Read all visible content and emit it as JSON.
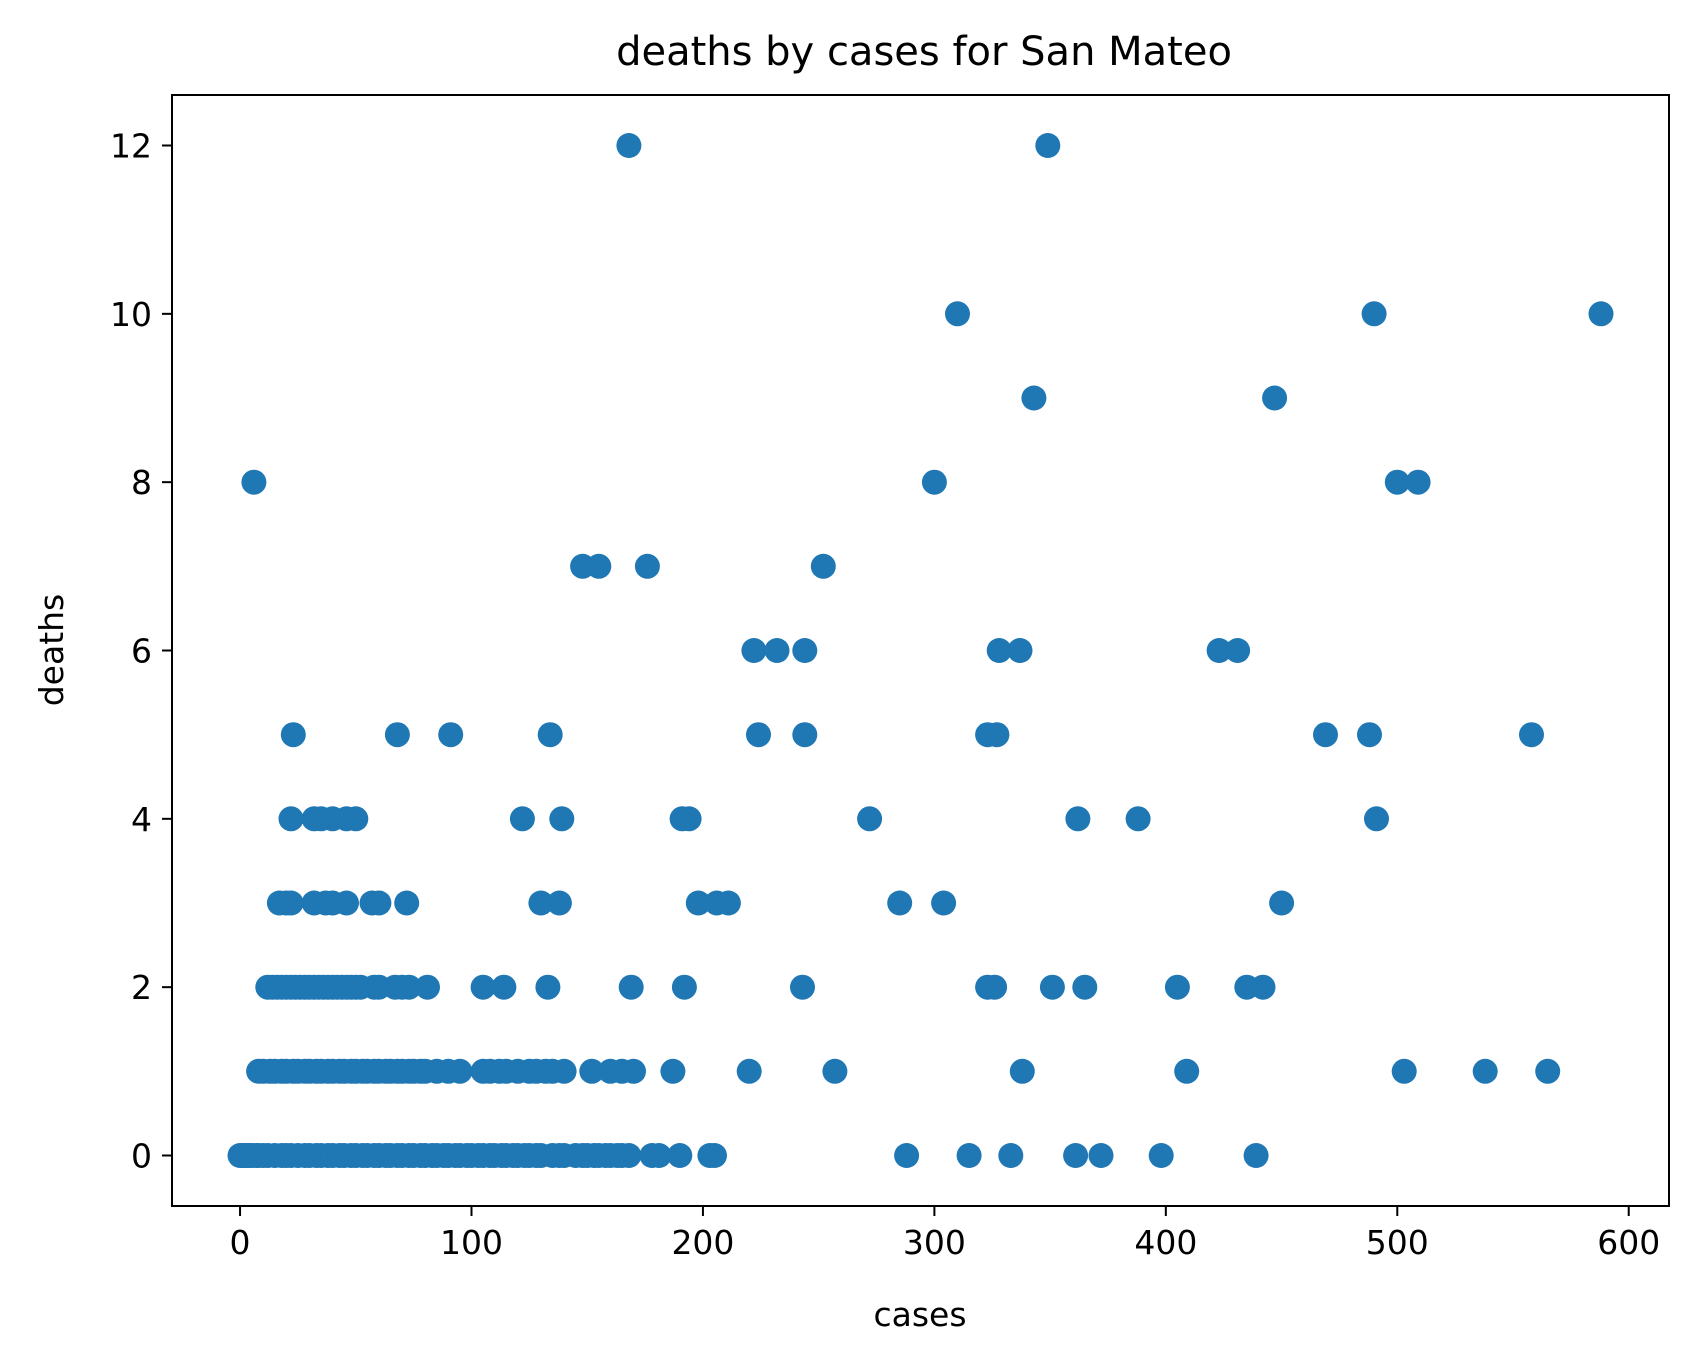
{
  "chart_data": {
    "type": "scatter",
    "title": "deaths by cases for San Mateo",
    "xlabel": "cases",
    "ylabel": "deaths",
    "xlim": [
      -29.4,
      617.4
    ],
    "ylim": [
      -0.6,
      12.6
    ],
    "xticks": [
      0,
      100,
      200,
      300,
      400,
      500,
      600
    ],
    "yticks": [
      0,
      2,
      4,
      6,
      8,
      10,
      12
    ],
    "grid": false,
    "color": "#1f77b4",
    "series": [
      {
        "x": [
          0,
          1,
          2,
          3,
          4,
          5,
          7,
          8,
          10,
          12,
          15,
          18,
          20,
          22,
          25,
          28,
          30,
          33,
          35,
          38,
          40,
          43,
          45,
          48,
          50,
          53,
          55,
          58,
          60,
          63,
          65,
          68,
          70,
          73,
          75,
          78,
          80,
          83,
          85,
          88,
          90,
          93,
          95,
          98,
          100,
          103,
          105,
          108,
          110,
          113,
          115,
          118,
          120,
          123,
          125,
          128,
          130,
          135,
          138,
          140,
          145,
          148,
          150,
          153,
          155,
          158,
          160,
          163,
          165,
          168,
          178,
          181,
          190,
          203,
          205,
          288,
          315,
          333,
          361,
          372,
          398,
          439,
          8,
          10,
          13,
          15,
          18,
          20,
          23,
          25,
          28,
          30,
          33,
          35,
          38,
          40,
          43,
          45,
          48,
          50,
          53,
          55,
          58,
          60,
          63,
          65,
          68,
          70,
          73,
          75,
          78,
          80,
          85,
          90,
          95,
          105,
          108,
          112,
          115,
          120,
          125,
          128,
          132,
          135,
          140,
          152,
          160,
          165,
          170,
          187,
          220,
          257,
          338,
          409,
          503,
          538,
          565,
          12,
          14,
          16,
          18,
          20,
          22,
          24,
          26,
          28,
          30,
          32,
          34,
          36,
          38,
          40,
          42,
          44,
          46,
          48,
          50,
          52,
          58,
          60,
          67,
          70,
          73,
          81,
          105,
          114,
          133,
          169,
          192,
          243,
          323,
          326,
          351,
          365,
          405,
          435,
          442,
          17,
          20,
          22,
          32,
          37,
          40,
          46,
          57,
          60,
          72,
          130,
          138,
          198,
          206,
          211,
          285,
          304,
          450,
          22,
          32,
          35,
          40,
          46,
          50,
          122,
          139,
          191,
          194,
          272,
          362,
          388,
          491,
          23,
          68,
          91,
          134,
          224,
          244,
          323,
          327,
          469,
          488,
          558,
          222,
          232,
          244,
          328,
          337,
          423,
          431,
          148,
          155,
          176,
          252,
          6,
          300,
          500,
          509,
          343,
          447,
          310,
          490,
          588,
          168,
          349
        ],
        "y": [
          0,
          0,
          0,
          0,
          0,
          0,
          0,
          0,
          0,
          0,
          0,
          0,
          0,
          0,
          0,
          0,
          0,
          0,
          0,
          0,
          0,
          0,
          0,
          0,
          0,
          0,
          0,
          0,
          0,
          0,
          0,
          0,
          0,
          0,
          0,
          0,
          0,
          0,
          0,
          0,
          0,
          0,
          0,
          0,
          0,
          0,
          0,
          0,
          0,
          0,
          0,
          0,
          0,
          0,
          0,
          0,
          0,
          0,
          0,
          0,
          0,
          0,
          0,
          0,
          0,
          0,
          0,
          0,
          0,
          0,
          0,
          0,
          0,
          0,
          0,
          0,
          0,
          0,
          0,
          0,
          0,
          0,
          1,
          1,
          1,
          1,
          1,
          1,
          1,
          1,
          1,
          1,
          1,
          1,
          1,
          1,
          1,
          1,
          1,
          1,
          1,
          1,
          1,
          1,
          1,
          1,
          1,
          1,
          1,
          1,
          1,
          1,
          1,
          1,
          1,
          1,
          1,
          1,
          1,
          1,
          1,
          1,
          1,
          1,
          1,
          1,
          1,
          1,
          1,
          1,
          1,
          1,
          1,
          1,
          1,
          1,
          1,
          2,
          2,
          2,
          2,
          2,
          2,
          2,
          2,
          2,
          2,
          2,
          2,
          2,
          2,
          2,
          2,
          2,
          2,
          2,
          2,
          2,
          2,
          2,
          2,
          2,
          2,
          2,
          2,
          2,
          2,
          2,
          2,
          2,
          2,
          2,
          2,
          2,
          2,
          2,
          2,
          3,
          3,
          3,
          3,
          3,
          3,
          3,
          3,
          3,
          3,
          3,
          3,
          3,
          3,
          3,
          3,
          3,
          3,
          4,
          4,
          4,
          4,
          4,
          4,
          4,
          4,
          4,
          4,
          4,
          4,
          4,
          4,
          5,
          5,
          5,
          5,
          5,
          5,
          5,
          5,
          5,
          5,
          5,
          6,
          6,
          6,
          6,
          6,
          6,
          6,
          7,
          7,
          7,
          7,
          8,
          8,
          8,
          8,
          9,
          9,
          10,
          10,
          10,
          12,
          12
        ]
      }
    ]
  }
}
